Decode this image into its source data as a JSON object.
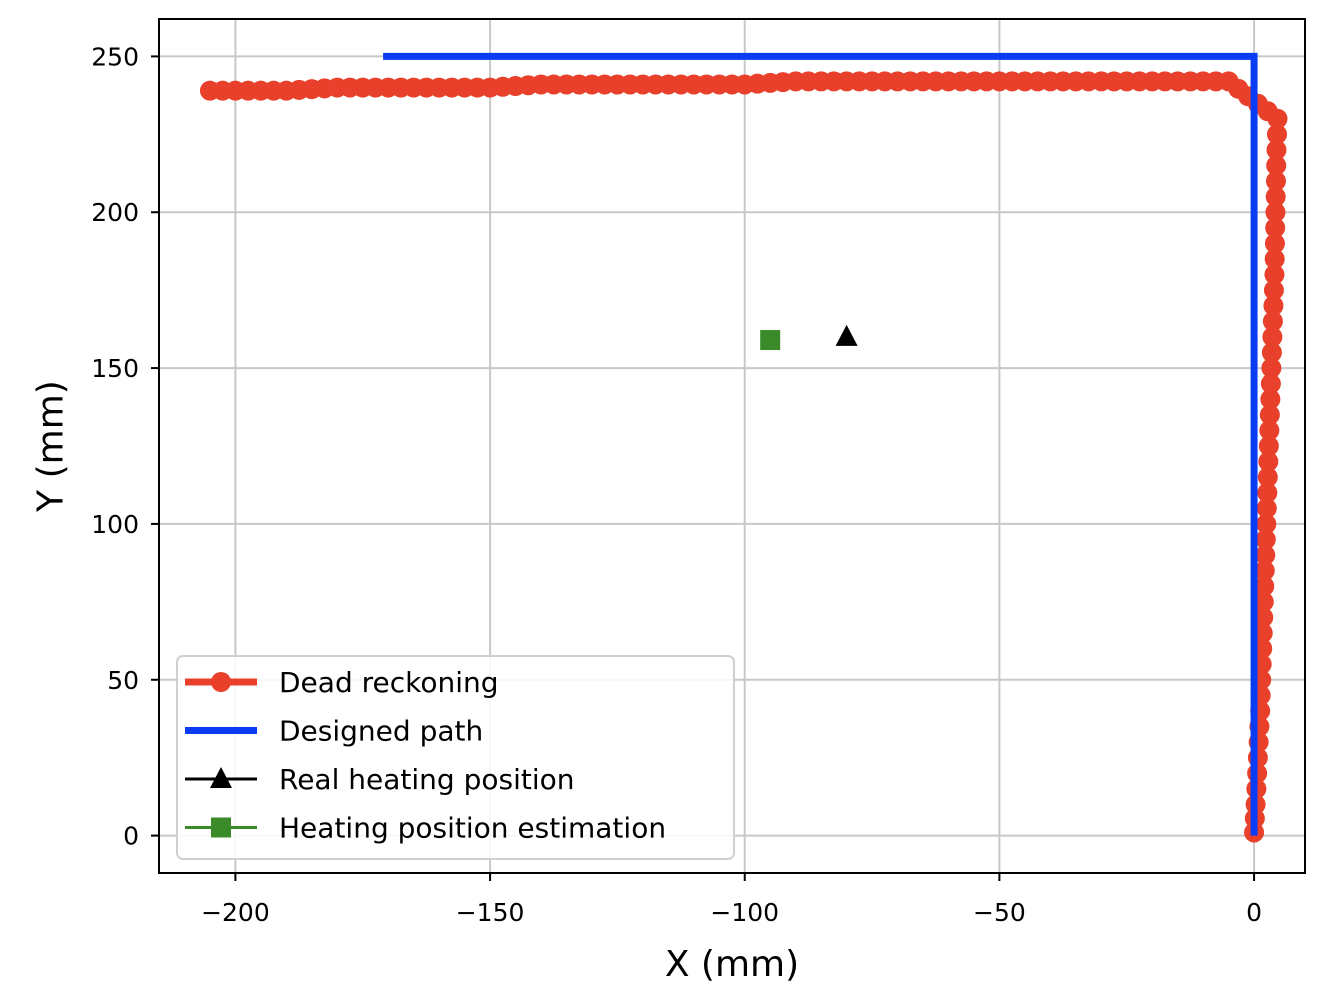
{
  "chart_data": {
    "type": "line",
    "title": "",
    "xlabel": "X (mm)",
    "ylabel": "Y (mm)",
    "xlim": [
      -215,
      10
    ],
    "ylim": [
      -12,
      262
    ],
    "xticks": [
      -200,
      -150,
      -100,
      -50,
      0
    ],
    "yticks": [
      0,
      50,
      100,
      150,
      200,
      250
    ],
    "xtick_labels": [
      "−200",
      "−150",
      "−100",
      "−50",
      "0"
    ],
    "ytick_labels": [
      "0",
      "50",
      "100",
      "150",
      "200",
      "250"
    ],
    "grid": true,
    "legend_position": "lower-left",
    "series": [
      {
        "name": "Dead reckoning",
        "color": "#e8402a",
        "marker": "circle",
        "style": "line",
        "x": [
          0,
          0.3,
          0.6,
          0.9,
          1.2,
          1.4,
          1.6,
          1.8,
          2.0,
          2.2,
          2.4,
          2.6,
          2.8,
          3.0,
          3.2,
          3.4,
          3.6,
          3.8,
          4.0,
          4.1,
          4.2,
          4.3,
          4.4,
          4.6,
          -5,
          -10,
          -20,
          -30,
          -40,
          -50,
          -60,
          -70,
          -80,
          -90,
          -100,
          -110,
          -120,
          -130,
          -140,
          -150,
          -160,
          -170,
          -180,
          -190,
          -200,
          -205
        ],
        "y": [
          1,
          10,
          20,
          30,
          40,
          50,
          60,
          70,
          80,
          90,
          100,
          110,
          120,
          130,
          140,
          150,
          160,
          170,
          180,
          190,
          200,
          210,
          220,
          230,
          242,
          242,
          242,
          242,
          242,
          242,
          242,
          242,
          242,
          242,
          241,
          241,
          241,
          241,
          241,
          240,
          240,
          240,
          240,
          239,
          239,
          239
        ]
      },
      {
        "name": "Designed path",
        "color": "#0a3cf5",
        "style": "line",
        "x": [
          0,
          0,
          -171
        ],
        "y": [
          0,
          250,
          250
        ]
      },
      {
        "name": "Real heating position",
        "color": "#000000",
        "marker": "triangle",
        "style": "marker",
        "x": [
          -80
        ],
        "y": [
          160
        ]
      },
      {
        "name": "Heating position estimation",
        "color": "#3a8a2a",
        "marker": "square",
        "style": "marker",
        "x": [
          -95
        ],
        "y": [
          159
        ]
      }
    ]
  }
}
